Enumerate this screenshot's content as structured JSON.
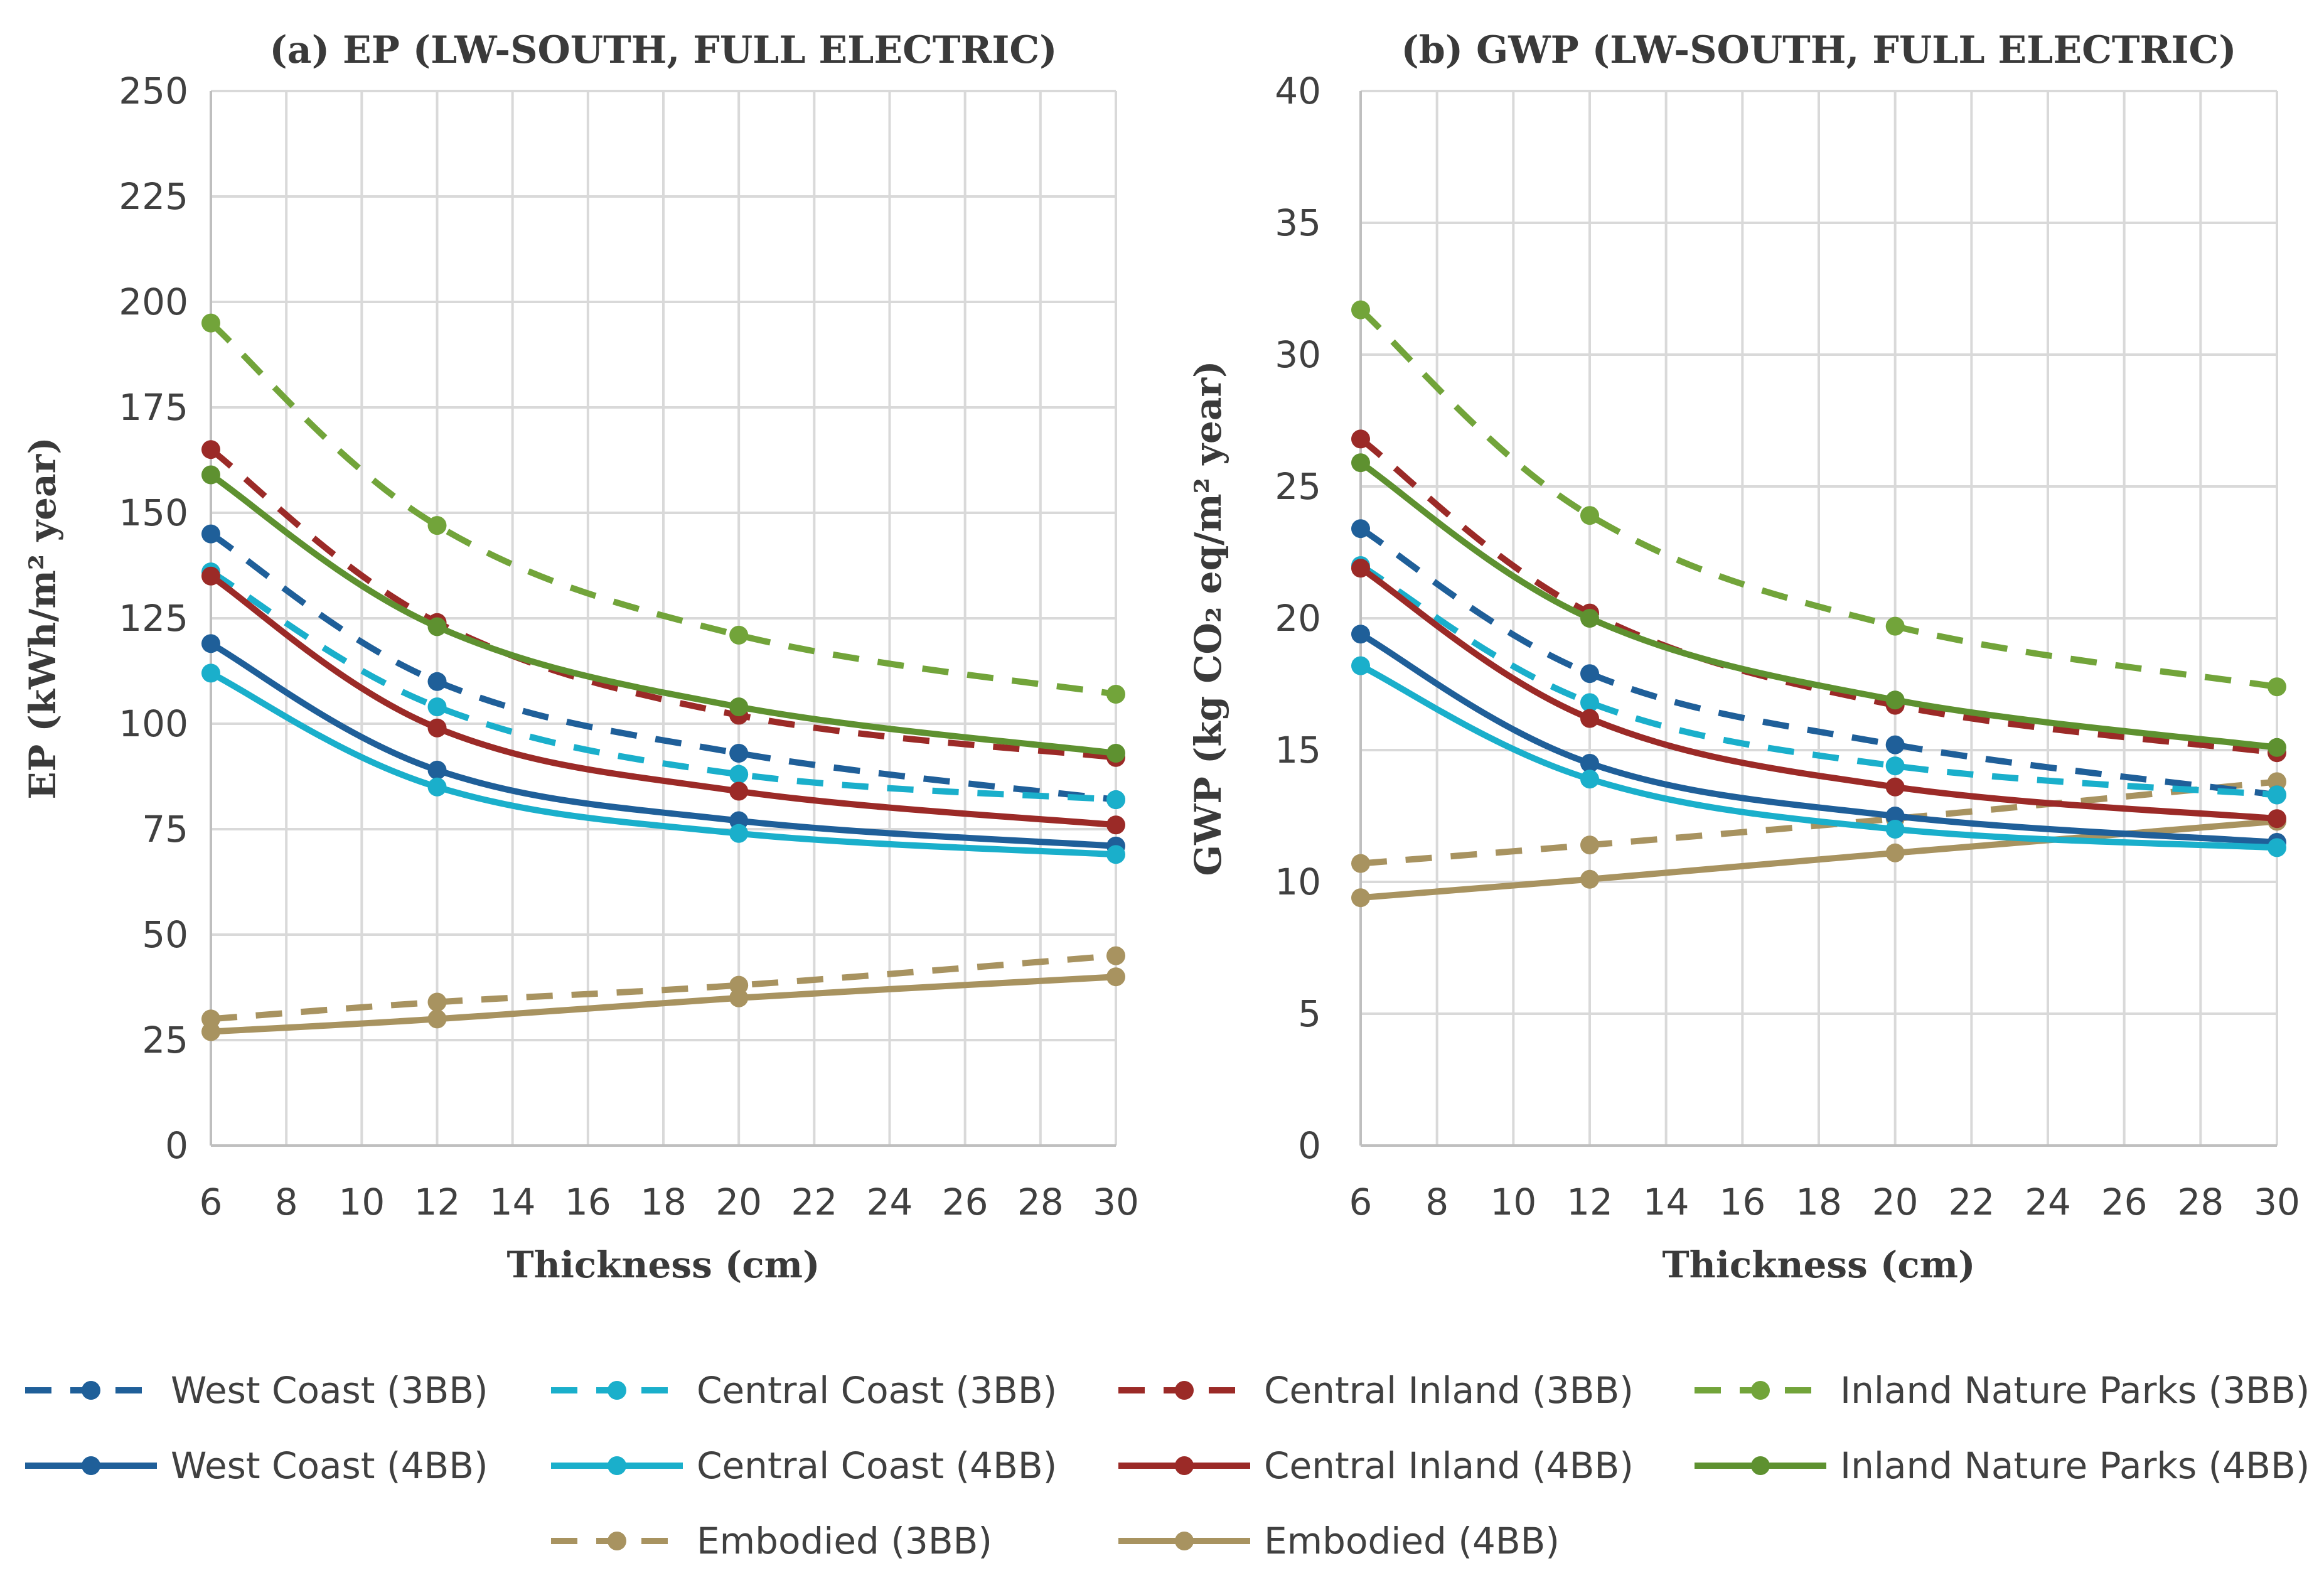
{
  "chart_data": [
    {
      "type": "line",
      "title": "(a) EP (LW-SOUTH, FULL ELECTRIC)",
      "xlabel": "Thickness  (cm)",
      "ylabel": "EP (kWh/m² year)",
      "xlim": [
        6,
        30
      ],
      "ylim": [
        0,
        250
      ],
      "xticks": [
        6,
        8,
        10,
        12,
        14,
        16,
        18,
        20,
        22,
        24,
        26,
        28,
        30
      ],
      "yticks": [
        0,
        25,
        50,
        75,
        100,
        125,
        150,
        175,
        200,
        225,
        250
      ],
      "grid": true,
      "x": [
        6,
        12,
        20,
        30
      ],
      "series": [
        {
          "name": "West Coast (3BB)",
          "values": [
            145,
            110,
            93,
            82
          ]
        },
        {
          "name": "Central Coast (3BB)",
          "values": [
            136,
            104,
            88,
            82
          ]
        },
        {
          "name": "Central Inland (3BB)",
          "values": [
            165,
            124,
            102,
            92
          ]
        },
        {
          "name": "Inland Nature Parks (3BB)",
          "values": [
            195,
            147,
            121,
            107
          ]
        },
        {
          "name": "West Coast (4BB)",
          "values": [
            119,
            89,
            77,
            71
          ]
        },
        {
          "name": "Central Coast (4BB)",
          "values": [
            112,
            85,
            74,
            69
          ]
        },
        {
          "name": "Central Inland (4BB)",
          "values": [
            135,
            99,
            84,
            76
          ]
        },
        {
          "name": "Inland Nature Parks (4BB)",
          "values": [
            159,
            123,
            104,
            93
          ]
        },
        {
          "name": "Embodied (3BB)",
          "values": [
            30,
            34,
            38,
            45
          ]
        },
        {
          "name": "Embodied (4BB)",
          "values": [
            27,
            30,
            35,
            40
          ]
        }
      ]
    },
    {
      "type": "line",
      "title": "(b) GWP (LW-SOUTH, FULL ELECTRIC)",
      "xlabel": "Thickness  (cm)",
      "ylabel": "GWP (kg CO₂ eq/m² year)",
      "xlim": [
        6,
        30
      ],
      "ylim": [
        0,
        40
      ],
      "xticks": [
        6,
        8,
        10,
        12,
        14,
        16,
        18,
        20,
        22,
        24,
        26,
        28,
        30
      ],
      "yticks": [
        0,
        5,
        10,
        15,
        20,
        25,
        30,
        35,
        40
      ],
      "grid": true,
      "x": [
        6,
        12,
        20,
        30
      ],
      "series": [
        {
          "name": "West Coast (3BB)",
          "values": [
            23.4,
            17.9,
            15.2,
            13.3
          ]
        },
        {
          "name": "Central Coast (3BB)",
          "values": [
            22.0,
            16.8,
            14.4,
            13.3
          ]
        },
        {
          "name": "Central Inland (3BB)",
          "values": [
            26.8,
            20.2,
            16.7,
            14.9
          ]
        },
        {
          "name": "Inland Nature Parks (3BB)",
          "values": [
            31.7,
            23.9,
            19.7,
            17.4
          ]
        },
        {
          "name": "West Coast (4BB)",
          "values": [
            19.4,
            14.5,
            12.5,
            11.5
          ]
        },
        {
          "name": "Central Coast (4BB)",
          "values": [
            18.2,
            13.9,
            12.0,
            11.3
          ]
        },
        {
          "name": "Central Inland (4BB)",
          "values": [
            21.9,
            16.2,
            13.6,
            12.4
          ]
        },
        {
          "name": "Inland Nature Parks (4BB)",
          "values": [
            25.9,
            20.0,
            16.9,
            15.1
          ]
        },
        {
          "name": "Embodied (3BB)",
          "values": [
            10.7,
            11.4,
            12.4,
            13.8
          ]
        },
        {
          "name": "Embodied (4BB)",
          "values": [
            9.4,
            10.1,
            11.1,
            12.3
          ]
        }
      ]
    }
  ],
  "series_styles": [
    {
      "name": "West Coast (3BB)",
      "color": "#1F5F99",
      "dashed": true
    },
    {
      "name": "Central Coast (3BB)",
      "color": "#1AAFCB",
      "dashed": true
    },
    {
      "name": "Central Inland (3BB)",
      "color": "#9B2A27",
      "dashed": true
    },
    {
      "name": "Inland Nature Parks (3BB)",
      "color": "#72A43A",
      "dashed": true
    },
    {
      "name": "West Coast (4BB)",
      "color": "#1F5F99",
      "dashed": false
    },
    {
      "name": "Central Coast (4BB)",
      "color": "#1AAFCB",
      "dashed": false
    },
    {
      "name": "Central Inland (4BB)",
      "color": "#9B2A27",
      "dashed": false
    },
    {
      "name": "Inland Nature Parks (4BB)",
      "color": "#5E9130",
      "dashed": false
    },
    {
      "name": "Embodied (3BB)",
      "color": "#A89360",
      "dashed": true
    },
    {
      "name": "Embodied (4BB)",
      "color": "#A89360",
      "dashed": false
    }
  ],
  "legend": {
    "placement": "bottom",
    "items": [
      "West Coast (3BB)",
      "Central Coast (3BB)",
      "Central Inland (3BB)",
      "Inland Nature Parks (3BB)",
      "West Coast (4BB)",
      "Central Coast (4BB)",
      "Central Inland (4BB)",
      "Inland Nature Parks (4BB)",
      "Embodied (3BB)",
      "Embodied (4BB)"
    ]
  }
}
